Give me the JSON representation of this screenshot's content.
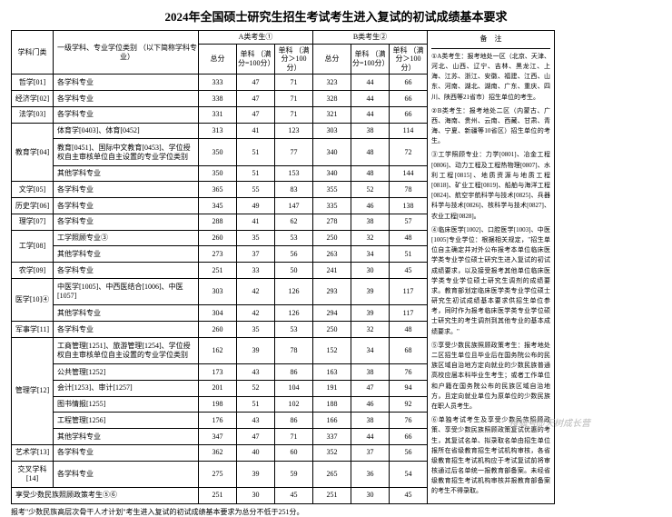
{
  "title": "2024年全国硕士研究生招生考试考生进入复试的初试成绩基本要求",
  "headers": {
    "category": "学科门类",
    "major": "一级学科、专业学位类别\n（以下简称学科专业）",
    "groupA": "A类考生①",
    "groupB": "B类考生②",
    "total": "总分",
    "single1": "单科\n（满分=100分）",
    "single2": "单科\n（满分＞100分）",
    "notes": "备　注"
  },
  "rows": [
    {
      "cat": "哲学[01]",
      "maj": "各学科专业",
      "a": [
        333,
        47,
        71
      ],
      "b": [
        323,
        44,
        66
      ]
    },
    {
      "cat": "经济学[02]",
      "maj": "各学科专业",
      "a": [
        338,
        47,
        71
      ],
      "b": [
        328,
        44,
        66
      ]
    },
    {
      "cat": "法学[03]",
      "maj": "各学科专业",
      "a": [
        331,
        47,
        71
      ],
      "b": [
        321,
        44,
        66
      ]
    },
    {
      "cat": "教育学[04]",
      "rowspan": 3,
      "maj": "体育学[0403]、体育[0452]",
      "a": [
        313,
        41,
        123
      ],
      "b": [
        303,
        38,
        114
      ]
    },
    {
      "maj": "教育[0451]、国际中文教育[0453]、学位授权自主审核单位自主设置的专业学位类别",
      "a": [
        350,
        51,
        77
      ],
      "b": [
        340,
        48,
        72
      ]
    },
    {
      "maj": "其他学科专业",
      "a": [
        350,
        51,
        153
      ],
      "b": [
        340,
        48,
        144
      ]
    },
    {
      "cat": "文学[05]",
      "maj": "各学科专业",
      "a": [
        365,
        55,
        83
      ],
      "b": [
        355,
        52,
        78
      ]
    },
    {
      "cat": "历史学[06]",
      "maj": "各学科专业",
      "a": [
        345,
        49,
        147
      ],
      "b": [
        335,
        46,
        138
      ]
    },
    {
      "cat": "理学[07]",
      "maj": "各学科专业",
      "a": [
        288,
        41,
        62
      ],
      "b": [
        278,
        38,
        57
      ]
    },
    {
      "cat": "工学[08]",
      "rowspan": 2,
      "maj": "工学照顾专业③",
      "a": [
        260,
        35,
        53
      ],
      "b": [
        250,
        32,
        48
      ]
    },
    {
      "maj": "其他学科专业",
      "a": [
        273,
        37,
        56
      ],
      "b": [
        263,
        34,
        51
      ]
    },
    {
      "cat": "农学[09]",
      "maj": "各学科专业",
      "a": [
        251,
        33,
        50
      ],
      "b": [
        241,
        30,
        45
      ]
    },
    {
      "cat": "医学[10]④",
      "rowspan": 2,
      "maj": "中医学[1005]、中西医结合[1006]、中医[1057]",
      "a": [
        303,
        42,
        126
      ],
      "b": [
        293,
        39,
        117
      ]
    },
    {
      "maj": "其他学科专业",
      "a": [
        304,
        42,
        126
      ],
      "b": [
        294,
        39,
        117
      ]
    },
    {
      "cat": "军事学[11]",
      "maj": "各学科专业",
      "a": [
        260,
        35,
        53
      ],
      "b": [
        250,
        32,
        48
      ]
    },
    {
      "cat": "管理学[12]",
      "rowspan": 6,
      "maj": "工商管理[1251]、旅游管理[1254]、学位授权自主审核单位自主设置的专业学位类别",
      "a": [
        162,
        39,
        78
      ],
      "b": [
        152,
        34,
        68
      ]
    },
    {
      "maj": "公共管理[1252]",
      "a": [
        173,
        43,
        86
      ],
      "b": [
        163,
        38,
        76
      ]
    },
    {
      "maj": "会计[1253]、审计[1257]",
      "a": [
        201,
        52,
        104
      ],
      "b": [
        191,
        47,
        94
      ]
    },
    {
      "maj": "图书情报[1255]",
      "a": [
        198,
        51,
        102
      ],
      "b": [
        188,
        46,
        92
      ]
    },
    {
      "maj": "工程管理[1256]",
      "a": [
        176,
        43,
        86
      ],
      "b": [
        166,
        38,
        76
      ]
    },
    {
      "maj": "其他学科专业",
      "a": [
        347,
        47,
        71
      ],
      "b": [
        337,
        44,
        66
      ]
    },
    {
      "cat": "艺术学[13]",
      "maj": "各学科专业",
      "a": [
        362,
        40,
        60
      ],
      "b": [
        352,
        37,
        56
      ]
    },
    {
      "cat": "交叉学科[14]",
      "maj": "各学科专业",
      "a": [
        275,
        39,
        59
      ],
      "b": [
        265,
        36,
        54
      ]
    },
    {
      "cat": "享受少数民族照顾政策考生⑤⑥",
      "colspan": 2,
      "a": [
        251,
        30,
        45
      ],
      "b": [
        251,
        30,
        45
      ]
    }
  ],
  "notes": [
    "①A类考生：报考地处一区（北京、天津、河北、山西、辽宁、吉林、黑龙江、上海、江苏、浙江、安徽、福建、江西、山东、河南、湖北、湖南、广东、重庆、四川、陕西等21省市）招生单位的考生。",
    "②B类考生：报考地处二区（内蒙古、广西、海南、贵州、云南、西藏、甘肃、青海、宁夏、新疆等10省区）招生单位的考生。",
    "③工学照顾专业：力学[0801]、冶金工程[0806]、动力工程及工程热物理[0807]、水利工程[0815]、地质资源与地质工程[0818]、矿业工程[0819]、船舶与海洋工程[0824]、航空宇航科学与技术[0825]、兵器科学与技术[0826]、核科学与技术[0827]、农业工程[0828]。",
    "④临床医学[1002]、口腔医学[1003]、中医[1005]专业学位：根据相关规定，\"招生单位自主确定并对外公布报考本单位临床医学类专业学位硕士研究生进入复试的初试成绩要求，以及接受报考其他单位临床医学类专业学位硕士研究生调剂的成绩要求。教育部划定临床医学类专业学位硕士研究生初试成绩基本要求供招生单位参考，同时作为报考临床医学类专业学位硕士研究生的考生调剂到其他专业的基本成绩要求。\"",
    "⑤享受少数民族照顾政策考生：报考地处二区招生单位且毕业后在国务院公布的民族区域自治地方定向就业的少数民族普通高校应届本科毕业生考生；或者工作单位和户籍在国务院公布的民族区域自治地方，且定向就业单位为原单位的少数民族在职人员考生。",
    "⑥单独考试考生及享受少数民族照顾政策、享受少数民族照顾政策复试优惠的考生，其复试名单、拟录取名单由招生单位报所在省级教育招生考试机构审核，各省级教育招生考试机构应于考试复试前将审核通过后名单统一报教育部备案。未经省级教育招生考试机构审核并报教育部备案的考生不得录取。"
  ],
  "footer": "报考\"少数民族高层次骨干人才计划\"考生进入复试的初试成绩基本要求为总分不低于251分。",
  "watermark": "搜狐号@天树成长营"
}
